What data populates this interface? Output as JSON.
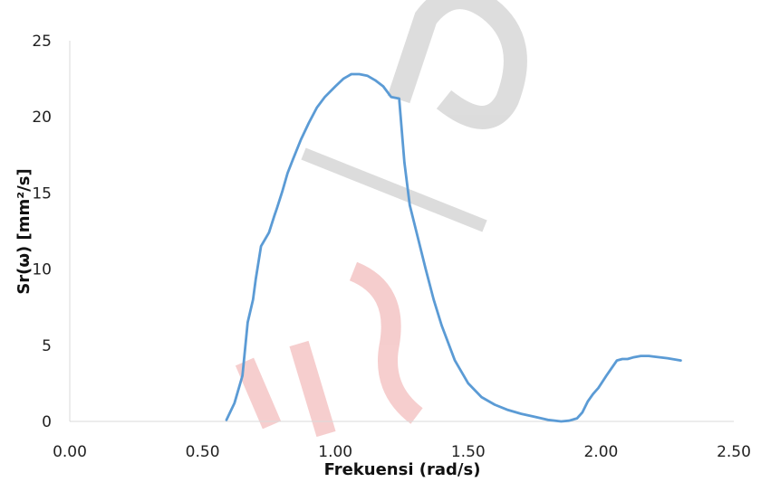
{
  "chart_data": {
    "type": "line",
    "title": "",
    "xlabel": "Frekuensi (rad/s)",
    "ylabel": "Sr(ω) [mm²/s]",
    "xlim": [
      0,
      2.5
    ],
    "ylim": [
      0,
      25
    ],
    "x_ticks": [
      "0.00",
      "0.50",
      "1.00",
      "1.50",
      "2.00",
      "2.50"
    ],
    "y_ticks": [
      "0",
      "5",
      "10",
      "15",
      "20",
      "25"
    ],
    "grid": false,
    "legend": "none",
    "series": [
      {
        "color": "#5b9bd5",
        "x": [
          0.59,
          0.62,
          0.65,
          0.67,
          0.69,
          0.7,
          0.72,
          0.75,
          0.77,
          0.78,
          0.8,
          0.82,
          0.84,
          0.87,
          0.9,
          0.93,
          0.96,
          1.0,
          1.03,
          1.06,
          1.09,
          1.12,
          1.15,
          1.18,
          1.21,
          1.24,
          1.26,
          1.28,
          1.31,
          1.34,
          1.37,
          1.4,
          1.45,
          1.5,
          1.55,
          1.6,
          1.65,
          1.7,
          1.75,
          1.8,
          1.85,
          1.88,
          1.91,
          1.93,
          1.95,
          1.97,
          1.99,
          2.02,
          2.04,
          2.06,
          2.08,
          2.1,
          2.12,
          2.15,
          2.18,
          2.2,
          2.25,
          2.3
        ],
        "y": [
          0.1,
          1.2,
          3.0,
          6.5,
          8.0,
          9.3,
          11.5,
          12.4,
          13.5,
          14.0,
          15.1,
          16.3,
          17.2,
          18.5,
          19.6,
          20.6,
          21.3,
          22.0,
          22.5,
          22.8,
          22.8,
          22.7,
          22.4,
          22.0,
          21.3,
          21.2,
          17.0,
          14.2,
          12.1,
          10.0,
          8.0,
          6.3,
          4.0,
          2.5,
          1.6,
          1.1,
          0.75,
          0.5,
          0.3,
          0.1,
          0.0,
          0.05,
          0.2,
          0.6,
          1.3,
          1.8,
          2.2,
          3.0,
          3.5,
          4.0,
          4.1,
          4.1,
          4.2,
          4.3,
          4.3,
          4.25,
          4.15,
          4.0
        ]
      }
    ]
  }
}
